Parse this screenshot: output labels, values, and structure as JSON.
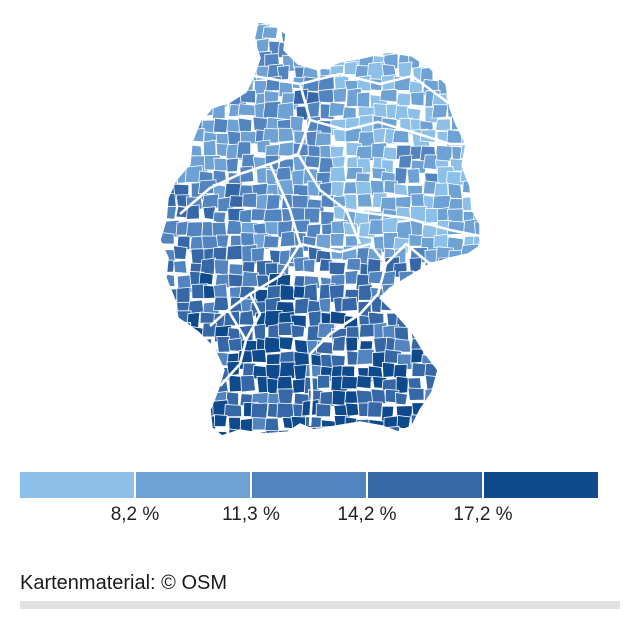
{
  "map": {
    "region": "Germany",
    "unit_type": "districts",
    "color_scale": [
      "#8cc0e8",
      "#6fa2d4",
      "#5285c0",
      "#3668a8",
      "#0f4a8c"
    ],
    "border_color": "#ffffff"
  },
  "legend": {
    "colors": [
      "#8cc0e8",
      "#6fa2d4",
      "#5285c0",
      "#3668a8",
      "#0f4a8c"
    ],
    "ticks": [
      "8,2 %",
      "11,3 %",
      "14,2 %",
      "17,2 %"
    ]
  },
  "attribution": "Kartenmaterial: © OSM"
}
